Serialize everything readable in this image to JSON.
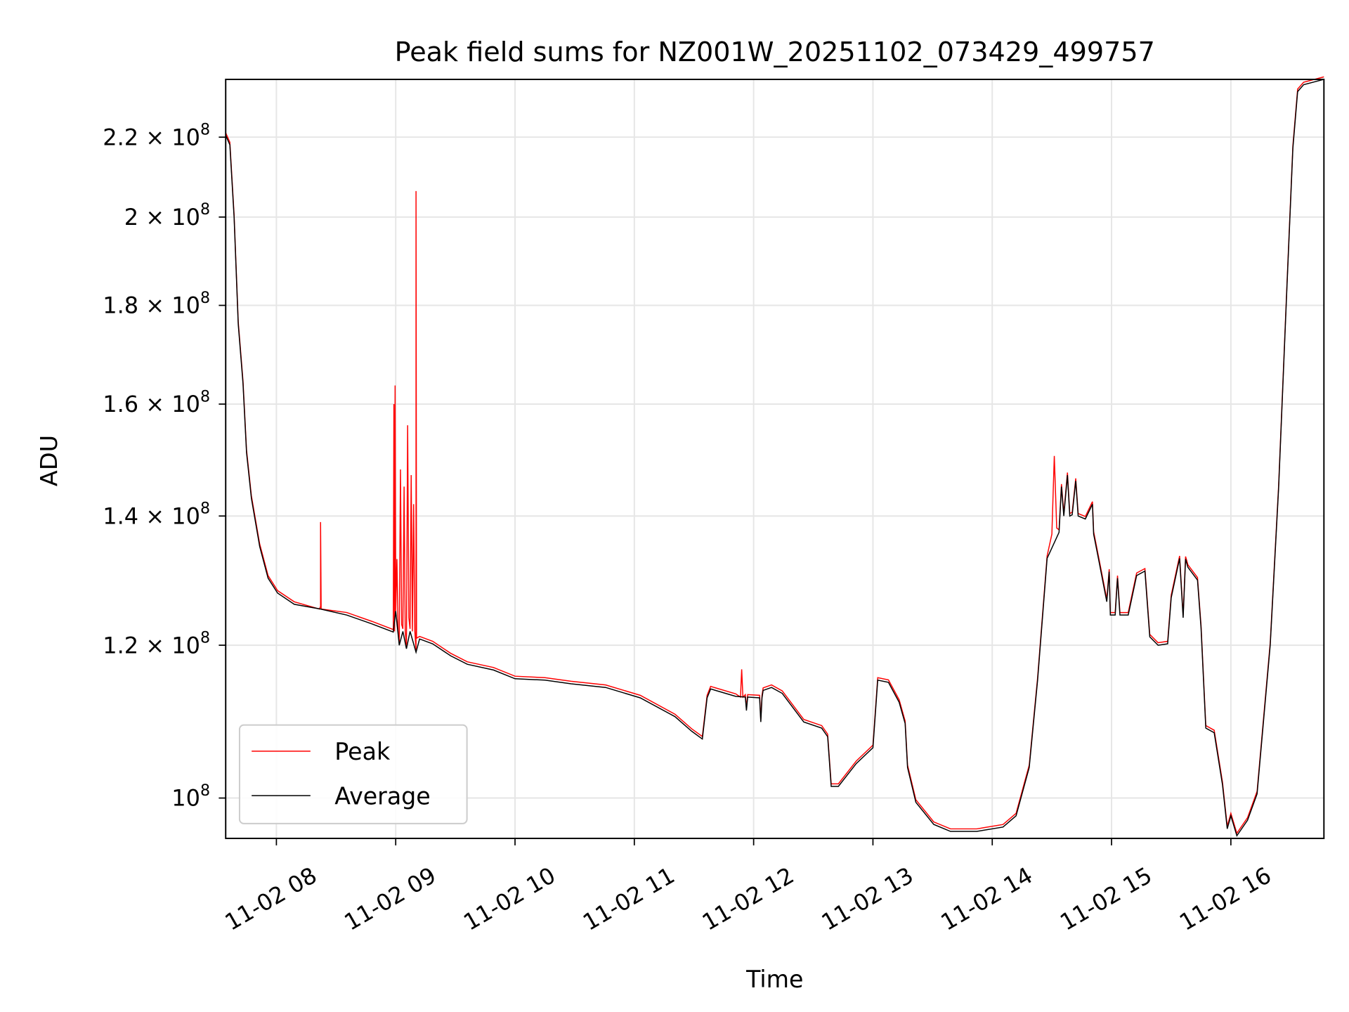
{
  "chart_data": {
    "type": "line",
    "title": "Peak field sums for NZ001W_20251102_073429_499757",
    "xlabel": "Time",
    "ylabel": "ADU",
    "x_unit": "hours of day 2025-11-02",
    "y_unit": "ADU x 1e8",
    "xscale": "linear",
    "yscale": "log",
    "xlim": [
      7.575,
      16.78
    ],
    "ylim": [
      0.953,
      2.357
    ],
    "grid": true,
    "legend_position": "lower-left",
    "x_ticks": [
      {
        "value": 8,
        "label": "11-02 08"
      },
      {
        "value": 9,
        "label": "11-02 09"
      },
      {
        "value": 10,
        "label": "11-02 10"
      },
      {
        "value": 11,
        "label": "11-02 11"
      },
      {
        "value": 12,
        "label": "11-02 12"
      },
      {
        "value": 13,
        "label": "11-02 13"
      },
      {
        "value": 14,
        "label": "11-02 14"
      },
      {
        "value": 15,
        "label": "11-02 15"
      },
      {
        "value": 16,
        "label": "11-02 16"
      }
    ],
    "y_ticks": [
      {
        "value": 1.0,
        "mantissa": "",
        "exponent": "8"
      },
      {
        "value": 1.2,
        "mantissa": "1.2 × ",
        "exponent": "8"
      },
      {
        "value": 1.4,
        "mantissa": "1.4 × ",
        "exponent": "8"
      },
      {
        "value": 1.6,
        "mantissa": "1.6 × ",
        "exponent": "8"
      },
      {
        "value": 1.8,
        "mantissa": "1.8 × ",
        "exponent": "8"
      },
      {
        "value": 2.0,
        "mantissa": "2 × ",
        "exponent": "8"
      },
      {
        "value": 2.2,
        "mantissa": "2.2 × ",
        "exponent": "8"
      }
    ],
    "series": [
      {
        "name": "Peak",
        "color": "#ff0000",
        "spikes": [
          [
            8.36,
            1.253
          ],
          [
            8.37,
            1.39
          ],
          [
            8.375,
            1.253
          ],
          [
            8.98,
            1.22
          ],
          [
            8.985,
            1.6
          ],
          [
            8.99,
            1.22
          ],
          [
            8.995,
            1.636
          ],
          [
            9.0,
            1.25
          ],
          [
            9.01,
            1.33
          ],
          [
            9.02,
            1.22
          ],
          [
            9.04,
            1.48
          ],
          [
            9.05,
            1.23
          ],
          [
            9.07,
            1.45
          ],
          [
            9.08,
            1.22
          ],
          [
            9.1,
            1.56
          ],
          [
            9.11,
            1.24
          ],
          [
            9.13,
            1.47
          ],
          [
            9.14,
            1.22
          ],
          [
            9.15,
            1.42
          ],
          [
            9.16,
            1.22
          ],
          [
            9.17,
            2.063
          ],
          [
            9.175,
            1.21
          ],
          [
            11.89,
            1.128
          ],
          [
            11.9,
            1.166
          ],
          [
            11.91,
            1.128
          ],
          [
            14.5,
            1.37
          ],
          [
            14.52,
            1.504
          ],
          [
            14.54,
            1.38
          ]
        ]
      },
      {
        "name": "Average",
        "color": "#000000",
        "points": [
          [
            7.575,
            2.205
          ],
          [
            7.61,
            2.18
          ],
          [
            7.645,
            2.0
          ],
          [
            7.68,
            1.76
          ],
          [
            7.72,
            1.64
          ],
          [
            7.75,
            1.51
          ],
          [
            7.79,
            1.43
          ],
          [
            7.86,
            1.35
          ],
          [
            7.93,
            1.3
          ],
          [
            8.01,
            1.277
          ],
          [
            8.15,
            1.26
          ],
          [
            8.37,
            1.253
          ],
          [
            8.59,
            1.244
          ],
          [
            8.8,
            1.231
          ],
          [
            8.98,
            1.219
          ],
          [
            9.0,
            1.25
          ],
          [
            9.03,
            1.2
          ],
          [
            9.06,
            1.22
          ],
          [
            9.09,
            1.195
          ],
          [
            9.12,
            1.22
          ],
          [
            9.17,
            1.19
          ],
          [
            9.2,
            1.209
          ],
          [
            9.31,
            1.202
          ],
          [
            9.46,
            1.185
          ],
          [
            9.6,
            1.173
          ],
          [
            9.82,
            1.165
          ],
          [
            10.0,
            1.153
          ],
          [
            10.25,
            1.151
          ],
          [
            10.47,
            1.146
          ],
          [
            10.76,
            1.141
          ],
          [
            11.05,
            1.127
          ],
          [
            11.34,
            1.102
          ],
          [
            11.48,
            1.083
          ],
          [
            11.57,
            1.073
          ],
          [
            11.61,
            1.127
          ],
          [
            11.64,
            1.139
          ],
          [
            11.85,
            1.129
          ],
          [
            11.93,
            1.128
          ],
          [
            11.94,
            1.11
          ],
          [
            11.95,
            1.128
          ],
          [
            12.05,
            1.127
          ],
          [
            12.06,
            1.095
          ],
          [
            12.07,
            1.127
          ],
          [
            12.08,
            1.137
          ],
          [
            12.15,
            1.141
          ],
          [
            12.24,
            1.133
          ],
          [
            12.42,
            1.095
          ],
          [
            12.57,
            1.087
          ],
          [
            12.62,
            1.076
          ],
          [
            12.65,
            1.014
          ],
          [
            12.71,
            1.014
          ],
          [
            12.86,
            1.042
          ],
          [
            13.0,
            1.062
          ],
          [
            13.04,
            1.151
          ],
          [
            13.13,
            1.148
          ],
          [
            13.22,
            1.121
          ],
          [
            13.27,
            1.093
          ],
          [
            13.29,
            1.037
          ],
          [
            13.36,
            0.995
          ],
          [
            13.51,
            0.969
          ],
          [
            13.65,
            0.961
          ],
          [
            13.87,
            0.961
          ],
          [
            14.09,
            0.966
          ],
          [
            14.2,
            0.979
          ],
          [
            14.31,
            1.037
          ],
          [
            14.38,
            1.151
          ],
          [
            14.46,
            1.331
          ],
          [
            14.56,
            1.373
          ],
          [
            14.58,
            1.45
          ],
          [
            14.6,
            1.4
          ],
          [
            14.63,
            1.47
          ],
          [
            14.65,
            1.4
          ],
          [
            14.67,
            1.402
          ],
          [
            14.7,
            1.46
          ],
          [
            14.72,
            1.4
          ],
          [
            14.78,
            1.395
          ],
          [
            14.84,
            1.42
          ],
          [
            14.85,
            1.37
          ],
          [
            14.89,
            1.331
          ],
          [
            14.96,
            1.264
          ],
          [
            14.98,
            1.31
          ],
          [
            14.99,
            1.244
          ],
          [
            15.03,
            1.244
          ],
          [
            15.05,
            1.3
          ],
          [
            15.07,
            1.244
          ],
          [
            15.14,
            1.244
          ],
          [
            15.21,
            1.304
          ],
          [
            15.28,
            1.311
          ],
          [
            15.32,
            1.212
          ],
          [
            15.39,
            1.2
          ],
          [
            15.47,
            1.202
          ],
          [
            15.5,
            1.27
          ],
          [
            15.57,
            1.331
          ],
          [
            15.6,
            1.24
          ],
          [
            15.62,
            1.33
          ],
          [
            15.64,
            1.317
          ],
          [
            15.72,
            1.297
          ],
          [
            15.75,
            1.225
          ],
          [
            15.79,
            1.087
          ],
          [
            15.86,
            1.081
          ],
          [
            15.93,
            1.016
          ],
          [
            15.97,
            0.964
          ],
          [
            16.0,
            0.979
          ],
          [
            16.05,
            0.956
          ],
          [
            16.14,
            0.974
          ],
          [
            16.22,
            1.005
          ],
          [
            16.33,
            1.2
          ],
          [
            16.4,
            1.447
          ],
          [
            16.47,
            1.838
          ],
          [
            16.52,
            2.171
          ],
          [
            16.56,
            2.323
          ],
          [
            16.61,
            2.342
          ],
          [
            16.78,
            2.357
          ]
        ]
      }
    ]
  }
}
